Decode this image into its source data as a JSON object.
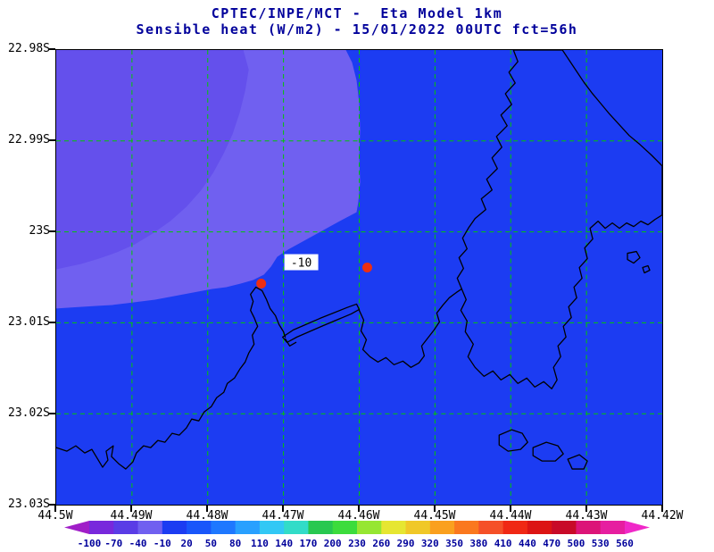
{
  "title": {
    "line1": "CPTEC/INPE/MCT -  Eta Model 1km",
    "line2": "Sensible heat (W/m2) - 15/01/2022 00UTC fct=56h"
  },
  "colors": {
    "title": "#00009b",
    "axis_text": "#000000",
    "water": "#1c3cf2",
    "shade_band": "#7060f0",
    "shade_corner": "#6450ec",
    "grid": "#00c800",
    "coastline": "#000000",
    "marker": "#ee2e12",
    "contour_box": "#ffffff",
    "contour_text": "#000000",
    "colorbar_label": "#00009b"
  },
  "map": {
    "contour_label": "-10",
    "markers": [
      {
        "x": 230,
        "y": 262
      },
      {
        "x": 349,
        "y": 244
      }
    ]
  },
  "chart_data": {
    "type": "heatmap",
    "title": "CPTEC/INPE/MCT - Eta Model 1km",
    "subtitle": "Sensible heat (W/m2) - 15/01/2022 00UTC fct=56h",
    "variable": "Sensible heat (W/m2)",
    "run": "15/01/2022 00UTC",
    "forecast": "fct=56h",
    "grid": true,
    "legend_position": "bottom-colorbar",
    "x_tick_labels": [
      "44.5W",
      "44.49W",
      "44.48W",
      "44.47W",
      "44.46W",
      "44.45W",
      "44.44W",
      "44.43W",
      "44.42W"
    ],
    "y_tick_labels": [
      "22.98S",
      "22.99S",
      "23S",
      "23.01S",
      "23.02S",
      "23.03S"
    ],
    "xlim": [
      "44.5W",
      "44.42W"
    ],
    "ylim": [
      "23.03S",
      "22.98S"
    ],
    "colorbar": {
      "levels": [
        -100,
        -70,
        -40,
        -10,
        20,
        50,
        80,
        110,
        140,
        170,
        200,
        230,
        260,
        290,
        320,
        350,
        380,
        410,
        440,
        470,
        500,
        530,
        560
      ],
      "colors": [
        "#a01ec8",
        "#7828dc",
        "#5a3ce6",
        "#7060f0",
        "#1c3cf2",
        "#1956fa",
        "#1e78ff",
        "#28a0ff",
        "#32c8f5",
        "#32dcc8",
        "#28c850",
        "#3cdc3c",
        "#96e632",
        "#e6e632",
        "#f0c828",
        "#faa01e",
        "#fa781e",
        "#f55028",
        "#f02814",
        "#dc1414",
        "#c80a28",
        "#dc1478",
        "#e61ea0",
        "#f028c8"
      ]
    },
    "field_summary": [
      {
        "value_band": "-40 to -10",
        "color": "#7060f0",
        "region": "northwest portion of domain"
      },
      {
        "value_band": "-10 to 20",
        "color": "#1c3cf2",
        "region": "remainder of domain"
      }
    ],
    "contour_labels": [
      {
        "value": -10,
        "approx_lon": "44.468W",
        "approx_lat": "23.003S"
      }
    ],
    "station_markers": [
      {
        "approx_lon": "44.473W",
        "approx_lat": "23.006S"
      },
      {
        "approx_lon": "44.459W",
        "approx_lat": "23.004S"
      }
    ]
  }
}
